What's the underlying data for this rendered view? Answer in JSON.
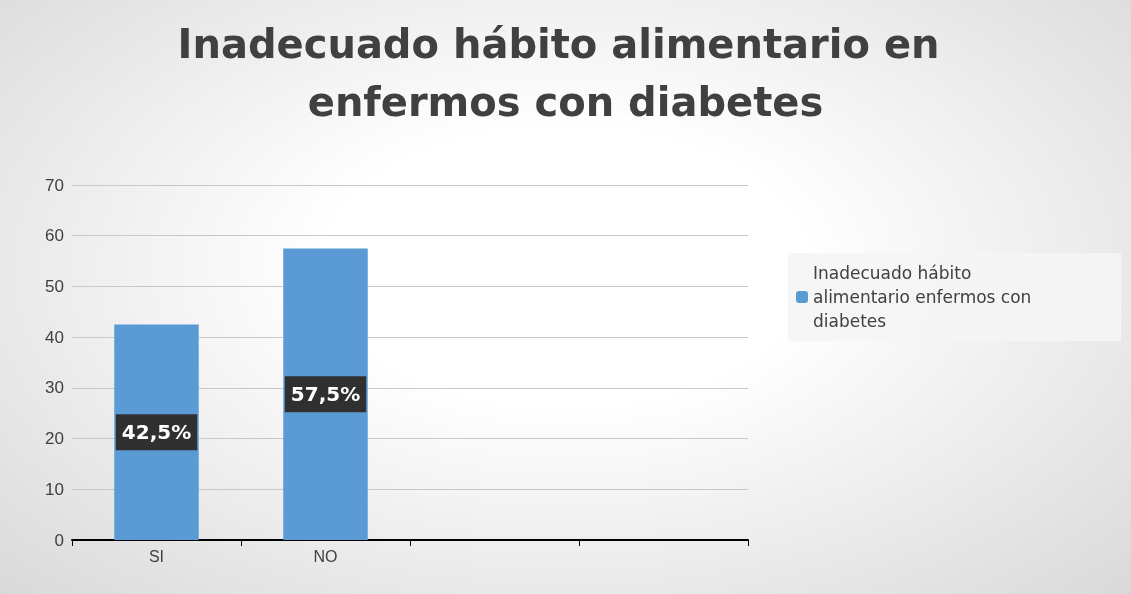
{
  "chart_data": {
    "type": "bar",
    "title": "Inadecuado hábito alimentario en enfermos con diabetes",
    "categories": [
      "SI",
      "NO",
      null,
      null
    ],
    "series": [
      {
        "name": "Inadecuado hábito alimentario enfermos con diabetes",
        "color": "#5b9bd5",
        "values": [
          42.5,
          57.5,
          null,
          null
        ],
        "value_labels": [
          "42,5%",
          "57,5%",
          null,
          null
        ]
      }
    ],
    "ylim": [
      0,
      70
    ],
    "yticks": [
      0,
      10,
      20,
      30,
      40,
      50,
      60,
      70
    ],
    "grid": "y",
    "legend": "right"
  }
}
